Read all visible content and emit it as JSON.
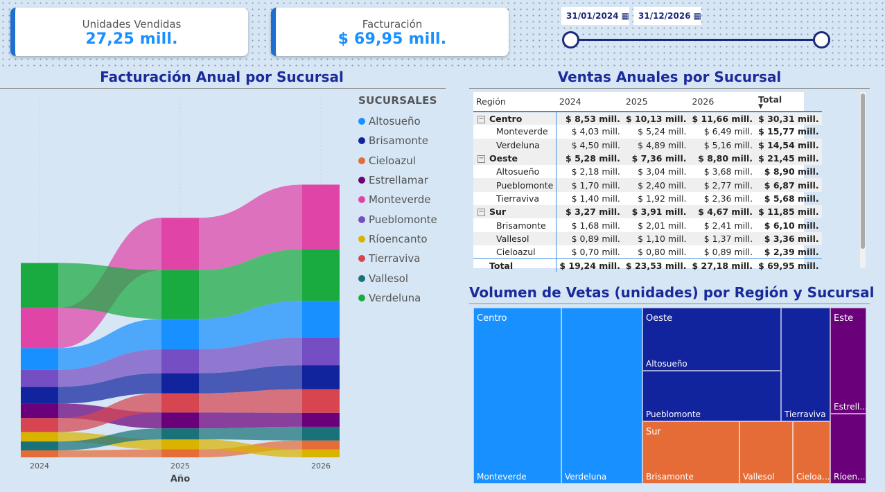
{
  "kpis": {
    "units": {
      "label": "Unidades Vendidas",
      "value": "27,25 mill."
    },
    "revenue": {
      "label": "Facturación",
      "value": "$ 69,95 mill."
    }
  },
  "date_slicer": {
    "start": "31/01/2024",
    "end": "31/12/2026",
    "calendar_icon": "calendar-icon"
  },
  "ribbon_chart": {
    "title": "Facturación Anual por Sucursal",
    "xlabel": "Año",
    "legend_title": "SUCURSALES"
  },
  "chart_data": {
    "type": "area",
    "subtype": "ribbon",
    "title": "Facturación Anual por Sucursal",
    "xlabel": "Año",
    "ylabel": "",
    "categories": [
      "2024",
      "2025",
      "2026"
    ],
    "series": [
      {
        "name": "Altosueño",
        "color": "#1890ff",
        "values": [
          2.18,
          3.04,
          3.68
        ]
      },
      {
        "name": "Brisamonte",
        "color": "#12239e",
        "values": [
          1.68,
          2.01,
          2.41
        ]
      },
      {
        "name": "Cieloazul",
        "color": "#e66c37",
        "values": [
          0.7,
          0.8,
          0.89
        ]
      },
      {
        "name": "Estrellamar",
        "color": "#6b007b",
        "values": [
          1.45,
          1.6,
          1.4
        ]
      },
      {
        "name": "Monteverde",
        "color": "#e044a7",
        "values": [
          4.03,
          5.24,
          6.49
        ]
      },
      {
        "name": "Pueblomonte",
        "color": "#744ec2",
        "values": [
          1.7,
          2.4,
          2.77
        ]
      },
      {
        "name": "Ríoencanto",
        "color": "#d9b300",
        "values": [
          0.95,
          1.0,
          0.8
        ]
      },
      {
        "name": "Tierraviva",
        "color": "#d64550",
        "values": [
          1.4,
          1.92,
          2.36
        ]
      },
      {
        "name": "Vallesol",
        "color": "#197278",
        "values": [
          0.89,
          1.1,
          1.37
        ]
      },
      {
        "name": "Verdeluna",
        "color": "#1aab40",
        "values": [
          4.5,
          4.89,
          5.16
        ]
      }
    ],
    "legend_position": "right"
  },
  "matrix": {
    "title": "Ventas Anuales por Sucursal",
    "headers": [
      "Región",
      "2024",
      "2025",
      "2026",
      "Total"
    ],
    "rows": [
      {
        "type": "region",
        "name": "Centro",
        "v": [
          "$ 8,53 mill.",
          "$ 10,13 mill.",
          "$ 11,66 mill.",
          "$ 30,31 mill."
        ]
      },
      {
        "type": "branch",
        "name": "Monteverde",
        "v": [
          "$ 4,03 mill.",
          "$ 5,24 mill.",
          "$ 6,49 mill.",
          "$ 15,77 mill."
        ]
      },
      {
        "type": "branch",
        "name": "Verdeluna",
        "v": [
          "$ 4,50 mill.",
          "$ 4,89 mill.",
          "$ 5,16 mill.",
          "$ 14,54 mill."
        ]
      },
      {
        "type": "region",
        "name": "Oeste",
        "v": [
          "$ 5,28 mill.",
          "$ 7,36 mill.",
          "$ 8,80 mill.",
          "$ 21,45 mill."
        ]
      },
      {
        "type": "branch",
        "name": "Altosueño",
        "v": [
          "$ 2,18 mill.",
          "$ 3,04 mill.",
          "$ 3,68 mill.",
          "$ 8,90 mill."
        ]
      },
      {
        "type": "branch",
        "name": "Pueblomonte",
        "v": [
          "$ 1,70 mill.",
          "$ 2,40 mill.",
          "$ 2,77 mill.",
          "$ 6,87 mill."
        ]
      },
      {
        "type": "branch",
        "name": "Tierraviva",
        "v": [
          "$ 1,40 mill.",
          "$ 1,92 mill.",
          "$ 2,36 mill.",
          "$ 5,68 mill."
        ]
      },
      {
        "type": "region",
        "name": "Sur",
        "v": [
          "$ 3,27 mill.",
          "$ 3,91 mill.",
          "$ 4,67 mill.",
          "$ 11,85 mill."
        ]
      },
      {
        "type": "branch",
        "name": "Brisamonte",
        "v": [
          "$ 1,68 mill.",
          "$ 2,01 mill.",
          "$ 2,41 mill.",
          "$ 6,10 mill."
        ]
      },
      {
        "type": "branch",
        "name": "Vallesol",
        "v": [
          "$ 0,89 mill.",
          "$ 1,10 mill.",
          "$ 1,37 mill.",
          "$ 3,36 mill."
        ]
      },
      {
        "type": "branch",
        "name": "Cieloazul",
        "v": [
          "$ 0,70 mill.",
          "$ 0,80 mill.",
          "$ 0,89 mill.",
          "$ 2,39 mill."
        ]
      }
    ],
    "total": {
      "name": "Total",
      "v": [
        "$ 19,24 mill.",
        "$ 23,53 mill.",
        "$ 27,18 mill.",
        "$ 69,95 mill."
      ]
    }
  },
  "treemap": {
    "title": "Volumen de Vetas (unidades) por Región y Sucursal",
    "groups": {
      "centro": "Centro",
      "oeste": "Oeste",
      "sur": "Sur",
      "este": "Este"
    },
    "leaves": {
      "monteverde": "Monteverde",
      "verdeluna": "Verdeluna",
      "altosueno": "Altosueño",
      "pueblomonte": "Pueblomonte",
      "tierraviva": "Tierraviva",
      "brisamonte": "Brisamonte",
      "vallesol": "Vallesol",
      "cieloazul": "Cieloa...",
      "estrellamar": "Estrell...",
      "rioencanto": "Ríoen..."
    },
    "colors": {
      "centro": "#1890ff",
      "oeste": "#12239e",
      "sur": "#e66c37",
      "este": "#6b007b"
    }
  }
}
